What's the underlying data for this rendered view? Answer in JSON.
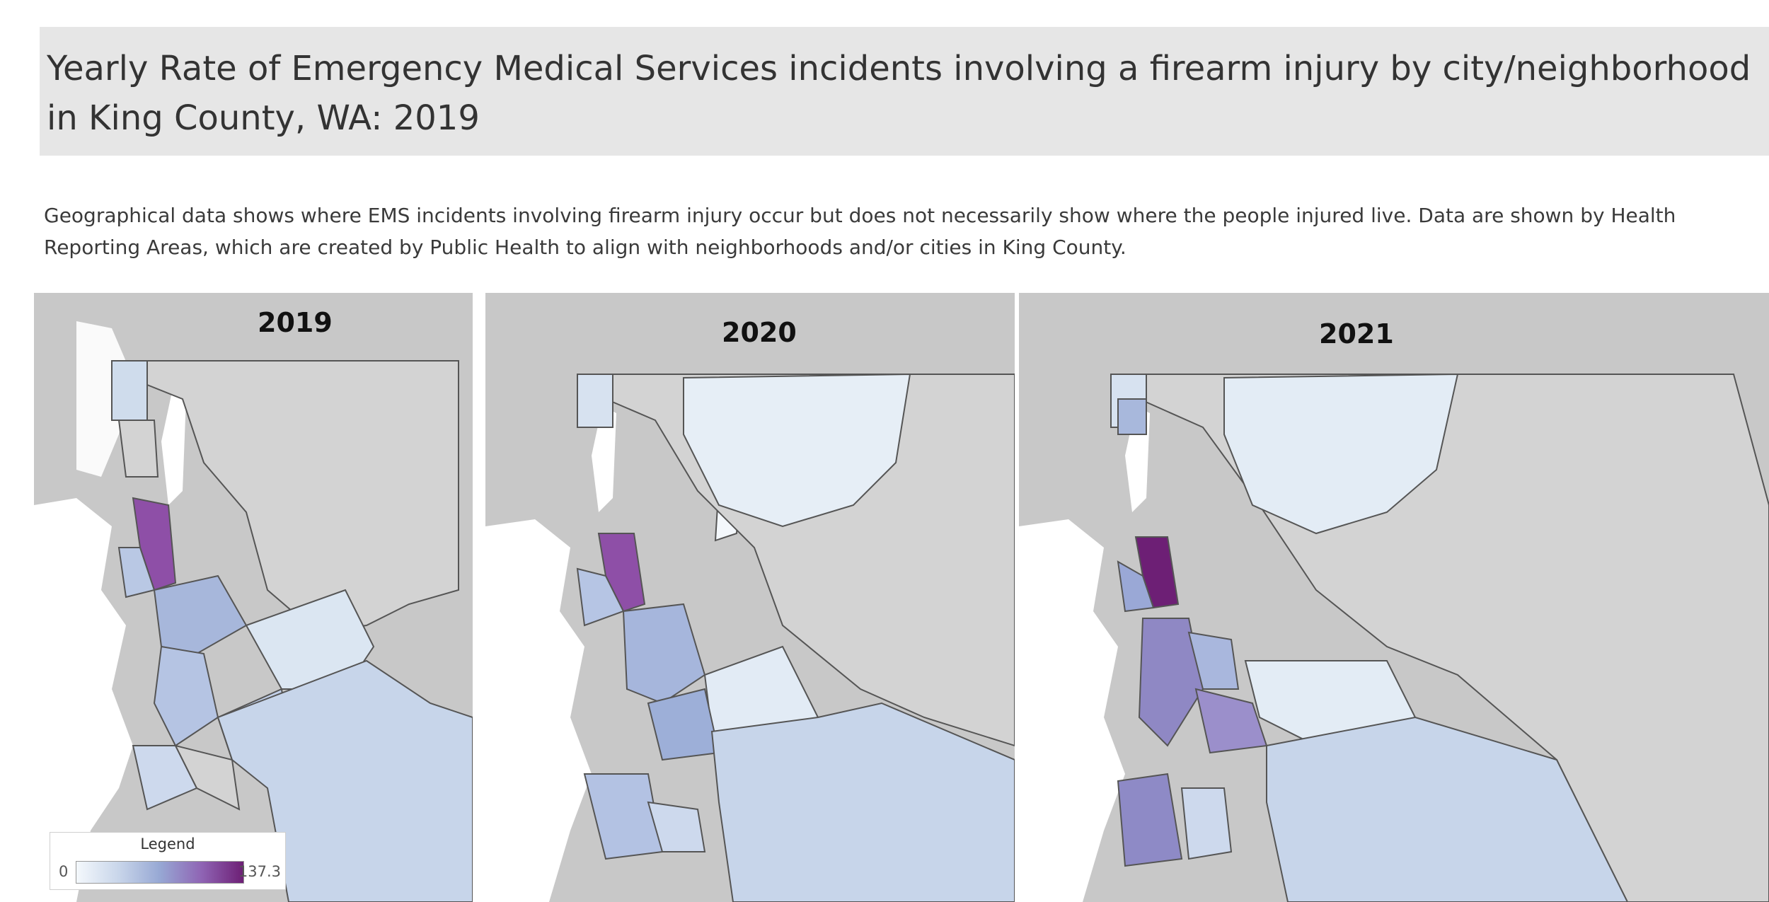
{
  "header": {
    "title": "Yearly Rate of Emergency Medical Services incidents involving a firearm injury by city/neighborhood in King County, WA: 2019",
    "description": "Geographical data shows where EMS incidents involving firearm injury occur but does not necessarily show where the people injured live. Data are shown by Health Reporting Areas, which are created by Public Health to align with neighborhoods and/or cities in King County."
  },
  "maps": [
    {
      "year": "2019"
    },
    {
      "year": "2020"
    },
    {
      "year": "2021"
    }
  ],
  "legend": {
    "title": "Legend",
    "min": "0",
    "max": "137.3",
    "colors": [
      "#f4f8fc",
      "#c9d6ea",
      "#97a8d4",
      "#8f64b4",
      "#6d1f75"
    ]
  },
  "map_colors": {
    "water": "#ffffff",
    "land": "#c8c8c8",
    "no_data": "#d3d3d3",
    "border": "#555555"
  }
}
